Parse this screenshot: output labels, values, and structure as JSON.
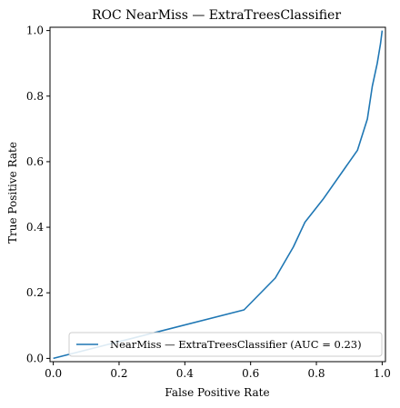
{
  "chart_data": {
    "type": "line",
    "title": "ROC NearMiss — ExtraTreesClassifier",
    "xlabel": "False Positive Rate",
    "ylabel": "True Positive Rate",
    "xlim": [
      -0.01,
      1.01
    ],
    "ylim": [
      -0.01,
      1.01
    ],
    "xticks": [
      0.0,
      0.2,
      0.4,
      0.6,
      0.8,
      1.0
    ],
    "yticks": [
      0.0,
      0.2,
      0.4,
      0.6,
      0.8,
      1.0
    ],
    "xtick_labels": [
      "0.0",
      "0.2",
      "0.4",
      "0.6",
      "0.8",
      "1.0"
    ],
    "ytick_labels": [
      "0.0",
      "0.2",
      "0.4",
      "0.6",
      "0.8",
      "1.0"
    ],
    "grid": false,
    "legend_position": "lower-right",
    "series": [
      {
        "name": "NearMiss — ExtraTreesClassifier (AUC = 0.23)",
        "color": "#1f77b4",
        "x": [
          0.0,
          0.58,
          0.675,
          0.73,
          0.765,
          0.82,
          0.925,
          0.955,
          0.97,
          0.985,
          0.99,
          0.995,
          1.0
        ],
        "y": [
          0.0,
          0.148,
          0.245,
          0.34,
          0.415,
          0.485,
          0.635,
          0.73,
          0.83,
          0.9,
          0.93,
          0.96,
          1.0
        ]
      }
    ]
  }
}
